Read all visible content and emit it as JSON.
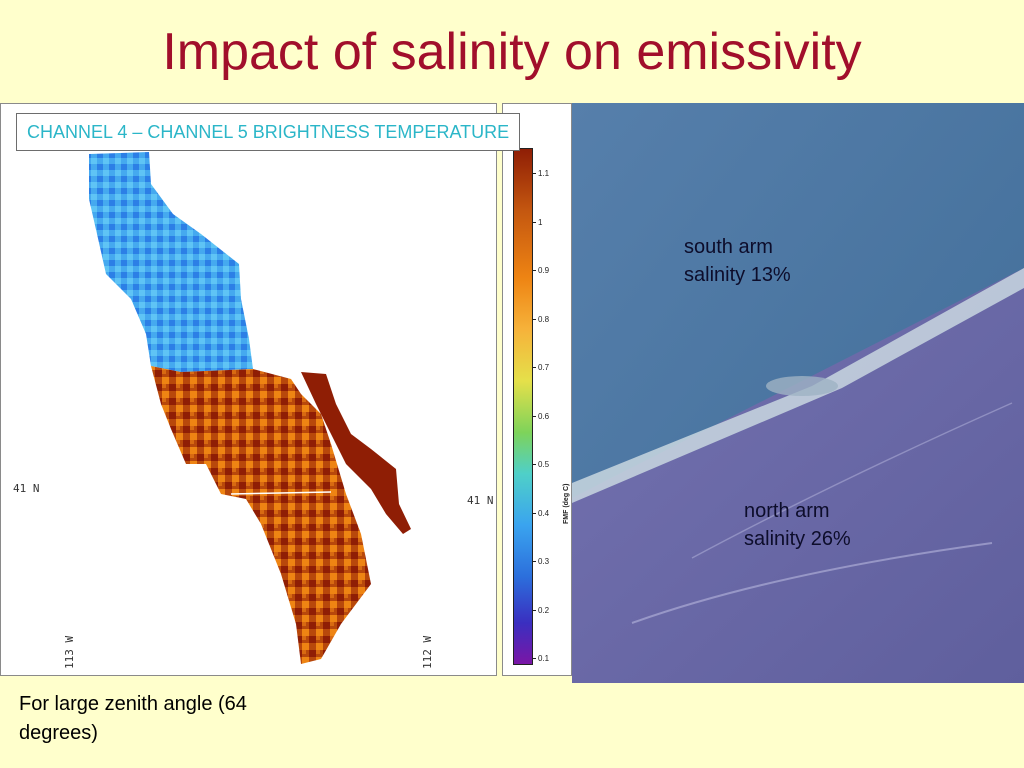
{
  "slide": {
    "title": "Impact of salinity on emissivity",
    "channel_label": "CHANNEL 4 – CHANNEL 5 BRIGHTNESS TEMPERATURE",
    "caption_line1": "For large zenith angle (64",
    "caption_line2": "degrees)"
  },
  "map": {
    "lat_left": "41 N",
    "lat_right": "41 N",
    "lon_left": "113 W",
    "lon_right": "112 W",
    "colors": {
      "south_arm": "#45a9ef",
      "south_arm_dark": "#2c6fdc",
      "north_arm": "#c45710",
      "north_arm_dark": "#8f1e05",
      "north_arm_light": "#ee8413"
    }
  },
  "colorbar": {
    "ticks": [
      "1.1",
      "1",
      "0.9",
      "0.8",
      "0.7",
      "0.6",
      "0.5",
      "0.4",
      "0.3",
      "0.2",
      "0.1"
    ],
    "unit_label": "FMF (deg C)"
  },
  "photo": {
    "south_label_line1": "south arm",
    "south_label_line2": "salinity 13%",
    "north_label_line1": "north arm",
    "north_label_line2": "salinity 26%",
    "colors": {
      "south_water": "#4a77a3",
      "north_water": "#6d6aa8",
      "causeway": "#c9d7e0"
    }
  }
}
